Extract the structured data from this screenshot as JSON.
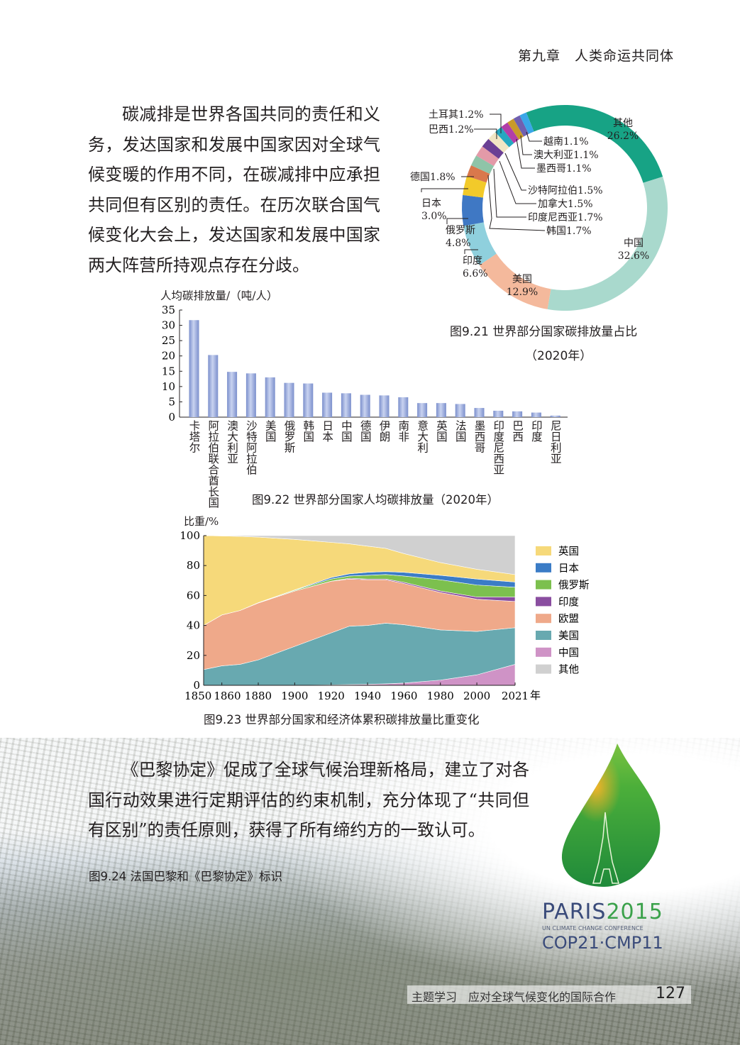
{
  "header": {
    "chapter": "第九章　人类命运共同体"
  },
  "paragraph1": "碳减排是世界各国共同的责任和义务，发达国家和发展中国家因对全球气候变暖的作用不同，在碳减排中应承担共同但有区别的责任。在历次联合国气候变化大会上，发达国家和发展中国家两大阵营所持观点存在分歧。",
  "paragraph2": "《巴黎协定》促成了全球气候治理新格局，建立了对各国行动效果进行定期评估的约束机制，充分体现了“共同但有区别”的责任原则，获得了所有缔约方的一致认可。",
  "figure_924_caption": "图9.24 法国巴黎和《巴黎协定》标识",
  "logo": {
    "line1a": "PARIS",
    "line1b": "2015",
    "line2": "UN CLIMATE CHANGE CONFERENCE",
    "line3": "COP21·CMP11"
  },
  "footer": {
    "title": "主题学习　应对全球气候变化的国际合作",
    "page": "127"
  },
  "chart_data": [
    {
      "type": "pie",
      "variant": "donut",
      "caption": "图9.21 世界部分国家碳排放量占比",
      "caption2": "（2020年）",
      "slices": [
        {
          "label": "其他",
          "value": 26.2,
          "text": "26.2%",
          "color": "#17a385"
        },
        {
          "label": "中国",
          "value": 32.6,
          "text": "32.6%",
          "color": "#a9d9cd"
        },
        {
          "label": "美国",
          "value": 12.9,
          "text": "12.9%",
          "color": "#f4b99c"
        },
        {
          "label": "印度",
          "value": 6.6,
          "text": "6.6%",
          "color": "#8fd0dd"
        },
        {
          "label": "俄罗斯",
          "value": 4.8,
          "text": "4.8%",
          "color": "#3f78c4"
        },
        {
          "label": "日本",
          "value": 3.0,
          "text": "3.0%",
          "color": "#f2ca2a"
        },
        {
          "label": "德国",
          "value": 1.8,
          "text": "1.8%",
          "color": "#d9784c"
        },
        {
          "label": "韩国",
          "value": 1.7,
          "text": "1.7%",
          "color": "#8fc4a8"
        },
        {
          "label": "印度尼西亚",
          "value": 1.7,
          "text": "1.7%",
          "color": "#e39aa8"
        },
        {
          "label": "加拿大",
          "value": 1.5,
          "text": "1.5%",
          "color": "#6a3f94"
        },
        {
          "label": "沙特阿拉伯",
          "value": 1.5,
          "text": "1.5%",
          "color": "#f1e6c4"
        },
        {
          "label": "巴西",
          "value": 1.2,
          "text": "1.2%",
          "color": "#25a8c0"
        },
        {
          "label": "土耳其",
          "value": 1.2,
          "text": "1.2%",
          "color": "#b23ea8"
        },
        {
          "label": "墨西哥",
          "value": 1.1,
          "text": "1.1%",
          "color": "#c89a2a"
        },
        {
          "label": "澳大利亚",
          "value": 1.1,
          "text": "1.1%",
          "color": "#7060b0"
        },
        {
          "label": "越南",
          "value": 1.1,
          "text": "1.1%",
          "color": "#3aa6e8"
        }
      ]
    },
    {
      "type": "bar",
      "caption": "图9.22 世界部分国家人均碳排放量（2020年）",
      "ylabel": "人均碳排放量/（吨/人）",
      "ylim": [
        0,
        35
      ],
      "yticks": [
        0,
        5,
        10,
        15,
        20,
        25,
        30,
        35
      ],
      "categories": [
        "卡塔尔",
        "阿拉伯联合酋长国",
        "澳大利亚",
        "沙特阿拉伯",
        "美国",
        "俄罗斯",
        "韩国",
        "日本",
        "中国",
        "德国",
        "伊朗",
        "南非",
        "意大利",
        "英国",
        "法国",
        "墨西哥",
        "印度尼西亚",
        "巴西",
        "印度",
        "尼日利亚"
      ],
      "values": [
        31.7,
        20.3,
        14.8,
        14.3,
        13.0,
        11.2,
        11.0,
        8.0,
        7.8,
        7.3,
        7.1,
        6.5,
        4.6,
        4.6,
        4.3,
        3.0,
        2.1,
        1.9,
        1.5,
        0.5
      ],
      "bar_color": "#8fa3d8"
    },
    {
      "type": "area",
      "stacked": true,
      "caption": "图9.23 世界部分国家和经济体累积碳排放量比重变化",
      "ylabel": "比重/%",
      "xlabel": "年",
      "ylim": [
        0,
        100
      ],
      "yticks": [
        0,
        20,
        40,
        60,
        80,
        100
      ],
      "xticks": [
        "1850",
        "1860",
        "1880",
        "1900",
        "1920",
        "1940",
        "1960",
        "1980",
        "2000",
        "2021"
      ],
      "x": [
        1850,
        1860,
        1870,
        1880,
        1900,
        1920,
        1930,
        1940,
        1950,
        1960,
        1980,
        2000,
        2021
      ],
      "series": [
        {
          "name": "中国",
          "color": "#cf93c6",
          "values": [
            0,
            0,
            0,
            0,
            0,
            0.3,
            0.5,
            0.7,
            1,
            1.5,
            3.5,
            7,
            14
          ]
        },
        {
          "name": "美国",
          "color": "#68a9b0",
          "values": [
            10.5,
            13,
            14,
            17,
            26,
            34.7,
            39,
            39.3,
            40.5,
            39,
            33.5,
            29,
            24.5
          ]
        },
        {
          "name": "欧盟",
          "color": "#efa98a",
          "values": [
            29.5,
            34,
            36,
            38,
            37,
            34.5,
            31.5,
            30.5,
            29,
            27.5,
            25,
            21.5,
            17.5
          ]
        },
        {
          "name": "印度",
          "color": "#8a4ea0",
          "values": [
            0,
            0,
            0,
            0,
            0,
            0.1,
            0.5,
            0.5,
            0.5,
            0.8,
            1,
            1.5,
            3
          ]
        },
        {
          "name": "俄罗斯",
          "color": "#7cc04e",
          "values": [
            0,
            0,
            0,
            0.2,
            0.5,
            1.4,
            1.5,
            2.5,
            3,
            4.2,
            7.5,
            8,
            6.5
          ]
        },
        {
          "name": "日本",
          "color": "#3b7cc6",
          "values": [
            0,
            0,
            0,
            0,
            0.2,
            1,
            1.5,
            2,
            2,
            2.5,
            3,
            4,
            3.5
          ]
        },
        {
          "name": "英国",
          "color": "#f6d97a",
          "values": [
            60,
            52.8,
            49.5,
            43.8,
            33.8,
            23.5,
            20,
            17.5,
            15.5,
            12.5,
            8.5,
            6.5,
            5
          ]
        },
        {
          "name": "其他",
          "color": "#d0d0d0",
          "values": [
            0,
            0.2,
            0.5,
            1,
            2.5,
            4.5,
            5.5,
            7,
            8.5,
            12,
            18,
            22.5,
            26
          ]
        }
      ],
      "legend_order": [
        "英国",
        "日本",
        "俄罗斯",
        "印度",
        "欧盟",
        "美国",
        "中国",
        "其他"
      ],
      "legend": "right"
    }
  ]
}
